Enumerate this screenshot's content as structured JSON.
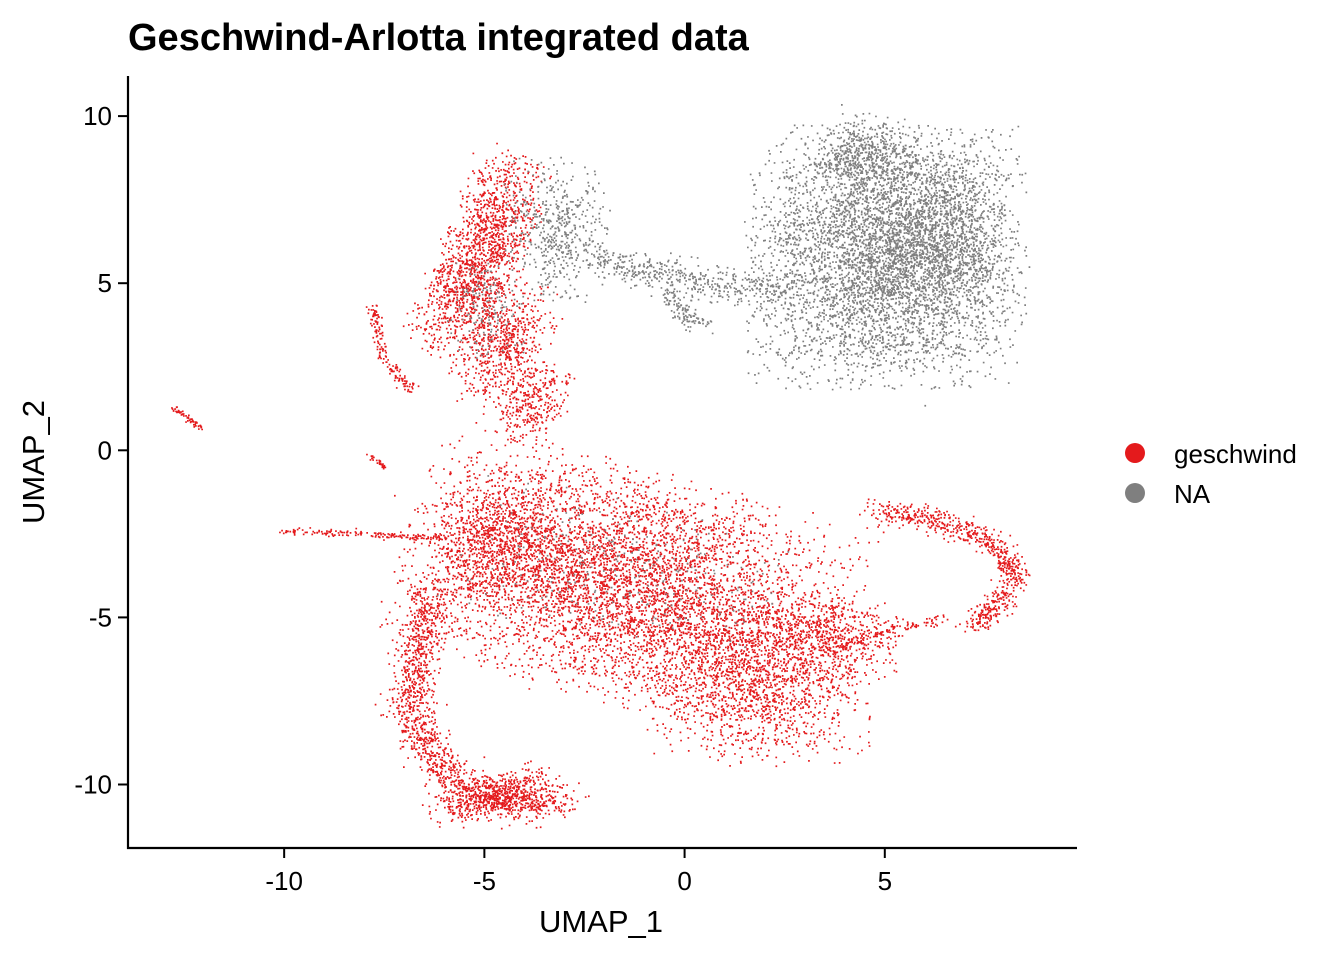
{
  "chart_data": {
    "type": "scatter",
    "title": "Geschwind-Arlotta integrated data",
    "xlabel": "UMAP_1",
    "ylabel": "UMAP_2",
    "xlim": [
      -13.9,
      9.8
    ],
    "ylim": [
      -11.9,
      11.2
    ],
    "xticks": [
      -10,
      -5,
      0,
      5
    ],
    "yticks": [
      -10,
      -5,
      0,
      5,
      10
    ],
    "xtick_labels": [
      "-10",
      "-5",
      "0",
      "5"
    ],
    "ytick_labels": [
      "-10",
      "-5",
      "0",
      "5",
      "10"
    ],
    "legend_position": "right",
    "grid": false,
    "series": [
      {
        "name": "geschwind",
        "color": "#E41A1C",
        "clusters": [
          {
            "x": -1.5,
            "y": -4.0,
            "sx": 2.6,
            "sy": 1.6,
            "rot": -18,
            "n": 5200
          },
          {
            "x": 1.8,
            "y": -6.8,
            "sx": 1.3,
            "sy": 1.2,
            "rot": 0,
            "n": 1500
          },
          {
            "x": -4.4,
            "y": -2.6,
            "sx": 0.9,
            "sy": 1.0,
            "rot": 0,
            "n": 900
          },
          {
            "x": 3.8,
            "y": -5.6,
            "sx": 0.8,
            "sy": 0.6,
            "rot": -10,
            "n": 500
          },
          {
            "x": -4.8,
            "y": 6.6,
            "sx": 0.5,
            "sy": 1.1,
            "rot": -15,
            "n": 900
          },
          {
            "x": -5.6,
            "y": 4.6,
            "sx": 0.5,
            "sy": 0.9,
            "rot": -20,
            "n": 600
          },
          {
            "x": -4.5,
            "y": 3.2,
            "sx": 0.5,
            "sy": 0.9,
            "rot": -20,
            "n": 600
          },
          {
            "x": -3.8,
            "y": 1.4,
            "sx": 0.4,
            "sy": 0.6,
            "rot": -20,
            "n": 300
          },
          {
            "x": -4.8,
            "y": -10.3,
            "sx": 0.8,
            "sy": 0.3,
            "rot": 20,
            "n": 500
          }
        ],
        "arcs": [
          {
            "points": [
              [
                -6.3,
                -4.0
              ],
              [
                -6.7,
                -6.0
              ],
              [
                -6.9,
                -7.8
              ],
              [
                -6.3,
                -9.2
              ],
              [
                -5.3,
                -10.2
              ],
              [
                -4.0,
                -10.6
              ],
              [
                -3.0,
                -10.4
              ]
            ],
            "spread": 0.28,
            "n": 1400
          },
          {
            "points": [
              [
                4.7,
                -1.8
              ],
              [
                6.2,
                -2.0
              ],
              [
                7.6,
                -2.7
              ],
              [
                8.3,
                -3.6
              ],
              [
                7.8,
                -4.6
              ],
              [
                7.2,
                -5.2
              ]
            ],
            "spread": 0.18,
            "n": 700
          },
          {
            "points": [
              [
                3.7,
                -5.9
              ],
              [
                5.0,
                -5.4
              ],
              [
                6.5,
                -5.0
              ]
            ],
            "spread": 0.08,
            "n": 90
          },
          {
            "points": [
              [
                -10.1,
                -2.4
              ],
              [
                -8.5,
                -2.45
              ],
              [
                -7.0,
                -2.55
              ],
              [
                -5.9,
                -2.6
              ]
            ],
            "spread": 0.05,
            "n": 160
          },
          {
            "points": [
              [
                -7.8,
                4.3
              ],
              [
                -7.6,
                3.0
              ],
              [
                -7.2,
                2.2
              ],
              [
                -6.8,
                1.8
              ]
            ],
            "spread": 0.08,
            "n": 150
          },
          {
            "points": [
              [
                -12.8,
                1.3
              ],
              [
                -12.1,
                0.7
              ]
            ],
            "spread": 0.04,
            "n": 60
          },
          {
            "points": [
              [
                -7.9,
                -0.1
              ],
              [
                -7.5,
                -0.5
              ]
            ],
            "spread": 0.04,
            "n": 30
          }
        ]
      },
      {
        "name": "NA",
        "color": "#7F7F7F",
        "clusters": [
          {
            "x": 5.0,
            "y": 5.8,
            "sx": 1.6,
            "sy": 1.8,
            "rot": 0,
            "n": 5000
          },
          {
            "x": 6.5,
            "y": 6.5,
            "sx": 0.8,
            "sy": 1.2,
            "rot": 0,
            "n": 800
          },
          {
            "x": 4.5,
            "y": 8.8,
            "sx": 0.6,
            "sy": 0.6,
            "rot": 0,
            "n": 500
          },
          {
            "x": -3.2,
            "y": 6.6,
            "sx": 0.6,
            "sy": 1.0,
            "rot": 0,
            "n": 500
          },
          {
            "x": -1.5,
            "y": -3.6,
            "sx": 2.0,
            "sy": 1.0,
            "rot": -15,
            "n": 280
          },
          {
            "x": -5.0,
            "y": 4.2,
            "sx": 0.5,
            "sy": 0.7,
            "rot": 0,
            "n": 150
          }
        ],
        "arcs": [
          {
            "points": [
              [
                -2.2,
                5.8
              ],
              [
                -1.0,
                5.4
              ],
              [
                0.0,
                5.2
              ],
              [
                1.3,
                4.9
              ],
              [
                2.5,
                4.9
              ]
            ],
            "spread": 0.25,
            "n": 450
          },
          {
            "points": [
              [
                -0.5,
                4.8
              ],
              [
                0.0,
                4.0
              ],
              [
                0.5,
                3.8
              ]
            ],
            "spread": 0.15,
            "n": 120
          }
        ]
      }
    ]
  }
}
